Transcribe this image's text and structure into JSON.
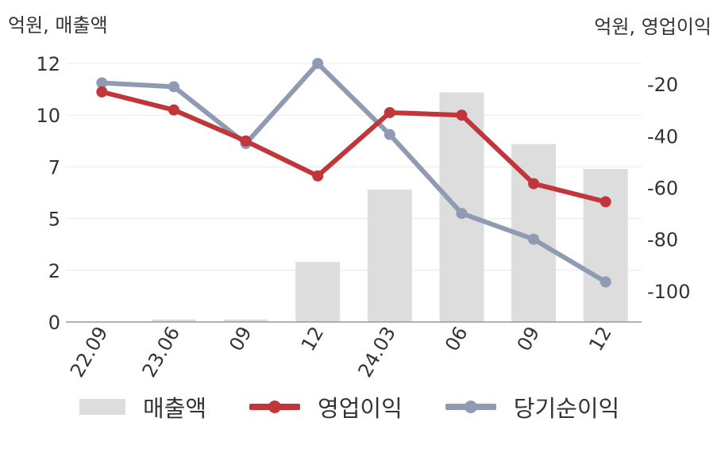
{
  "units": {
    "left": "억원, 매출액",
    "right": "억원, 영업이익"
  },
  "colors": {
    "bar": "#dddddd",
    "operating_profit": "#c0363a",
    "net_profit": "#8f9bb3",
    "axis": "#999999",
    "grid": "#e8e8e8",
    "text": "#333333"
  },
  "chart_data": {
    "type": "bar+line",
    "categories": [
      "22.09",
      "23.06",
      "09",
      "12",
      "24.03",
      "06",
      "09",
      "12"
    ],
    "left_axis": {
      "ticks": [
        "0",
        "2",
        "5",
        "7",
        "10",
        "12"
      ],
      "ylim": [
        0,
        12.5
      ]
    },
    "right_axis": {
      "ticks": [
        "-20",
        "-40",
        "-60",
        "-80",
        "-100"
      ],
      "ylim": [
        -112,
        -12
      ]
    },
    "series": [
      {
        "name": "매출액",
        "type": "bar",
        "axis": "left",
        "values": [
          0,
          0.12,
          0.12,
          2.9,
          6.4,
          11.1,
          8.6,
          7.4
        ]
      },
      {
        "name": "영업이익",
        "type": "line",
        "axis": "right",
        "values": [
          -23,
          -30,
          -42,
          -55.5,
          -31,
          -32,
          -58.5,
          -65.5
        ]
      },
      {
        "name": "당기순이익",
        "type": "line",
        "axis": "right",
        "values": [
          -19.5,
          -21,
          -43,
          -12,
          -39.5,
          -70,
          -80,
          -96.5
        ]
      }
    ]
  },
  "legend": [
    {
      "label": "매출액"
    },
    {
      "label": "영업이익"
    },
    {
      "label": "당기순이익"
    }
  ]
}
